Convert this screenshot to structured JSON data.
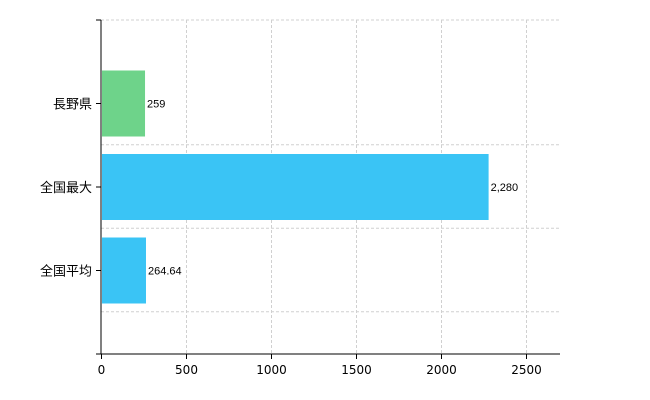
{
  "chart_data": {
    "type": "bar",
    "orientation": "horizontal",
    "categories": [
      "長野県",
      "全国最大",
      "全国平均"
    ],
    "values": [
      259,
      2280,
      264.64
    ],
    "value_labels": [
      "259",
      "2,280",
      "264.64"
    ],
    "colors": [
      "#6ed38a",
      "#3ac4f5",
      "#3ac4f5"
    ],
    "xlim": [
      0,
      2700
    ],
    "xticks": [
      0,
      500,
      1000,
      1500,
      2000,
      2500
    ],
    "grid": true,
    "grid_style": "dashed",
    "title": "",
    "xlabel": "",
    "ylabel": ""
  }
}
